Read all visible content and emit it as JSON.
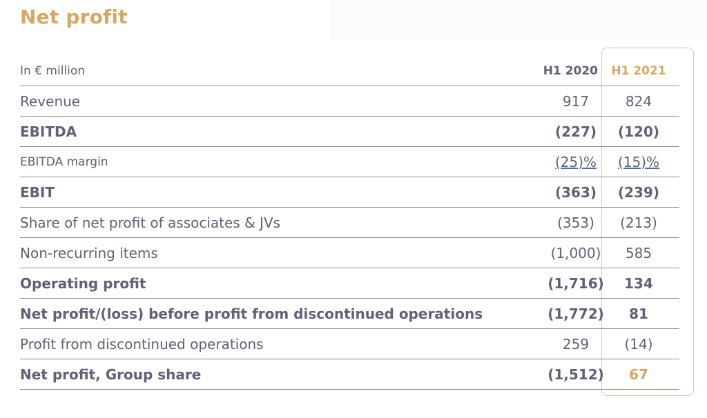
{
  "title": "Net profit",
  "accent_color": "#d6a862",
  "text_color": "#5e6178",
  "table": {
    "unit_label": "In € million",
    "col_2020": "H1 2020",
    "col_2021": "H1 2021",
    "rows": [
      {
        "label": "Revenue",
        "h1_2020": "917",
        "h1_2021": "824"
      },
      {
        "label": "EBITDA",
        "h1_2020": "(227)",
        "h1_2021": "(120)"
      },
      {
        "label": "EBITDA margin",
        "h1_2020": "(25)%",
        "h1_2021": "(15)%"
      },
      {
        "label": "EBIT",
        "h1_2020": "(363)",
        "h1_2021": "(239)"
      },
      {
        "label": "Share of net profit of associates & JVs",
        "h1_2020": "(353)",
        "h1_2021": "(213)"
      },
      {
        "label": "Non-recurring items",
        "h1_2020": "(1,000)",
        "h1_2021": "585"
      },
      {
        "label": "Operating profit",
        "h1_2020": "(1,716)",
        "h1_2021": "134"
      },
      {
        "label": "Net profit/(loss) before profit from discontinued operations",
        "h1_2020": "(1,772)",
        "h1_2021": "81"
      },
      {
        "label": "Profit from discontinued operations",
        "h1_2020": "259",
        "h1_2021": "(14)"
      },
      {
        "label": "Net profit, Group share",
        "h1_2020": "(1,512)",
        "h1_2021": "67"
      }
    ]
  }
}
